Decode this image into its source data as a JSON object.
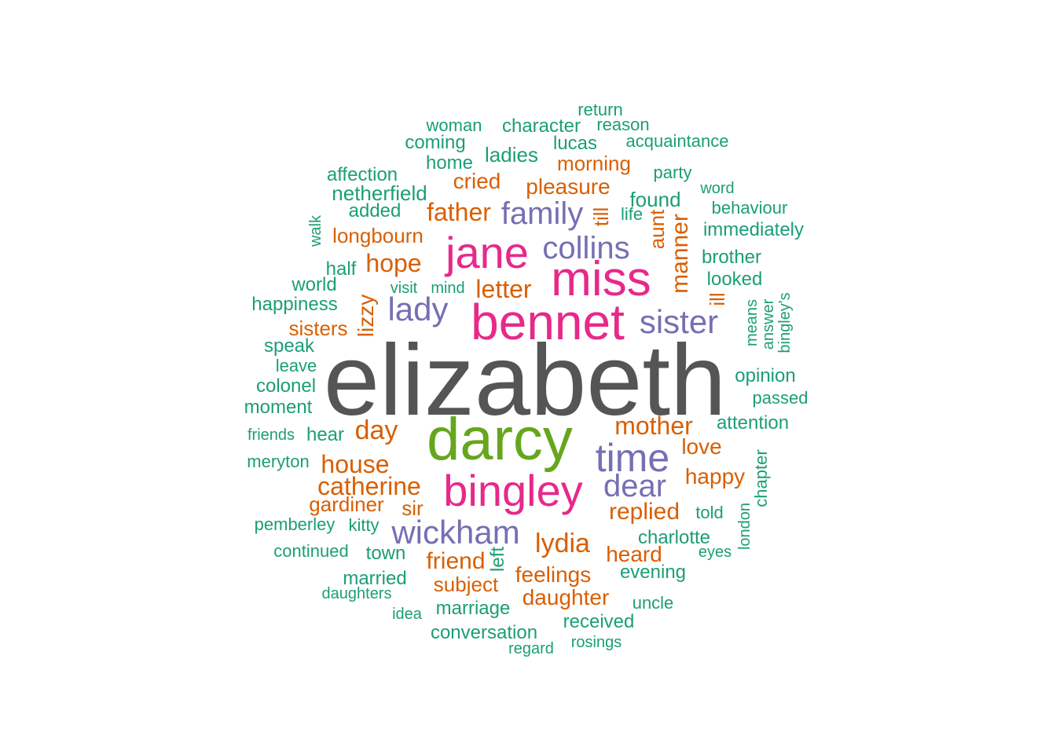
{
  "palette": {
    "c1": "#1b9e77",
    "c2": "#d95f02",
    "c3": "#7570b3",
    "c4": "#e7298a",
    "c5": "#66a61e",
    "c6": "#555555"
  },
  "words": [
    {
      "text": "elizabeth"
    },
    {
      "text": "darcy"
    },
    {
      "text": "bennet"
    },
    {
      "text": "miss"
    },
    {
      "text": "jane"
    },
    {
      "text": "bingley"
    },
    {
      "text": "time"
    },
    {
      "text": "wickham"
    },
    {
      "text": "dear"
    },
    {
      "text": "sister"
    },
    {
      "text": "lady"
    },
    {
      "text": "family"
    },
    {
      "text": "collins"
    },
    {
      "text": "lydia"
    },
    {
      "text": "mother"
    },
    {
      "text": "day"
    },
    {
      "text": "house"
    },
    {
      "text": "catherine"
    },
    {
      "text": "hope"
    },
    {
      "text": "father"
    },
    {
      "text": "letter"
    },
    {
      "text": "replied"
    },
    {
      "text": "friend"
    },
    {
      "text": "manner"
    },
    {
      "text": "feelings"
    },
    {
      "text": "pleasure"
    },
    {
      "text": "daughter"
    },
    {
      "text": "subject"
    },
    {
      "text": "gardiner"
    },
    {
      "text": "lizzy"
    },
    {
      "text": "happy"
    },
    {
      "text": "love"
    },
    {
      "text": "heard"
    },
    {
      "text": "aunt"
    },
    {
      "text": "cried"
    },
    {
      "text": "morning"
    },
    {
      "text": "longbourn"
    },
    {
      "text": "sisters"
    },
    {
      "text": "till"
    },
    {
      "text": "sir"
    },
    {
      "text": "ill"
    },
    {
      "text": "return"
    },
    {
      "text": "woman"
    },
    {
      "text": "character"
    },
    {
      "text": "reason"
    },
    {
      "text": "coming"
    },
    {
      "text": "lucas"
    },
    {
      "text": "acquaintance"
    },
    {
      "text": "ladies"
    },
    {
      "text": "home"
    },
    {
      "text": "affection"
    },
    {
      "text": "party"
    },
    {
      "text": "netherfield"
    },
    {
      "text": "word"
    },
    {
      "text": "found"
    },
    {
      "text": "added"
    },
    {
      "text": "behaviour"
    },
    {
      "text": "life"
    },
    {
      "text": "immediately"
    },
    {
      "text": "walk"
    },
    {
      "text": "brother"
    },
    {
      "text": "half"
    },
    {
      "text": "looked"
    },
    {
      "text": "world"
    },
    {
      "text": "visit"
    },
    {
      "text": "mind"
    },
    {
      "text": "happiness"
    },
    {
      "text": "means"
    },
    {
      "text": "answer"
    },
    {
      "text": "bingley's"
    },
    {
      "text": "speak"
    },
    {
      "text": "leave"
    },
    {
      "text": "opinion"
    },
    {
      "text": "colonel"
    },
    {
      "text": "passed"
    },
    {
      "text": "moment"
    },
    {
      "text": "attention"
    },
    {
      "text": "friends"
    },
    {
      "text": "hear"
    },
    {
      "text": "meryton"
    },
    {
      "text": "chapter"
    },
    {
      "text": "told"
    },
    {
      "text": "pemberley"
    },
    {
      "text": "kitty"
    },
    {
      "text": "london"
    },
    {
      "text": "charlotte"
    },
    {
      "text": "continued"
    },
    {
      "text": "town"
    },
    {
      "text": "left"
    },
    {
      "text": "eyes"
    },
    {
      "text": "evening"
    },
    {
      "text": "married"
    },
    {
      "text": "daughters"
    },
    {
      "text": "uncle"
    },
    {
      "text": "marriage"
    },
    {
      "text": "idea"
    },
    {
      "text": "received"
    },
    {
      "text": "conversation"
    },
    {
      "text": "rosings"
    },
    {
      "text": "regard"
    }
  ]
}
